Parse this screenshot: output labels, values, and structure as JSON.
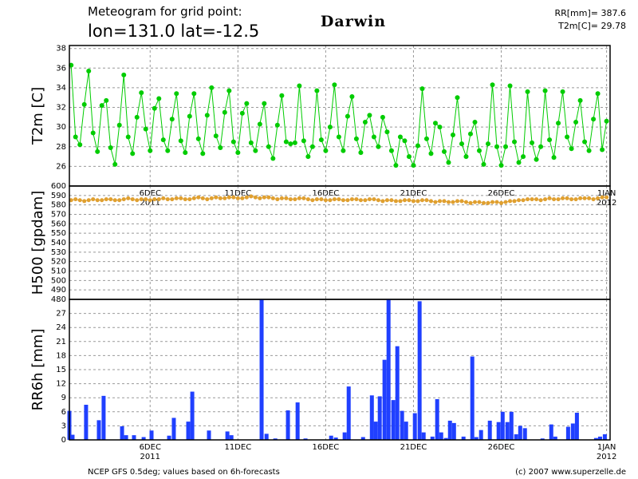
{
  "header": {
    "title": "Meteogram for grid point:",
    "location": "lon=131.0 lat=-12.5",
    "place": "Darwin",
    "rr_total": "RR[mm]= 387.6",
    "t2m_mean": "T2m[C]= 29.78"
  },
  "footer": {
    "source": "NCEP GFS 0.5deg; values based on 6h-forecasts",
    "copyright": "(c) 2007 www.superzelle.de"
  },
  "chart_data": [
    {
      "type": "line",
      "ylabel": "T2m [C]",
      "color": "#00cc00",
      "markers": true,
      "grid": true,
      "xlim": [
        1.4,
        32.2
      ],
      "ylim": [
        24,
        38.3
      ],
      "yticks": [
        26,
        28,
        30,
        32,
        34,
        36,
        38
      ],
      "xticks": [
        {
          "value": 6,
          "label": "6DEC",
          "year": "2011"
        },
        {
          "value": 11,
          "label": "11DEC"
        },
        {
          "value": 16,
          "label": "16DEC"
        },
        {
          "value": 21,
          "label": "21DEC"
        },
        {
          "value": 26,
          "label": "26DEC"
        },
        {
          "value": 32,
          "label": "1JAN",
          "year": "2012"
        }
      ],
      "x": [
        1.5,
        1.75,
        2,
        2.25,
        2.5,
        2.75,
        3,
        3.25,
        3.5,
        3.75,
        4,
        4.25,
        4.5,
        4.75,
        5,
        5.25,
        5.5,
        5.75,
        6,
        6.25,
        6.5,
        6.75,
        7,
        7.25,
        7.5,
        7.75,
        8,
        8.25,
        8.5,
        8.75,
        9,
        9.25,
        9.5,
        9.75,
        10,
        10.25,
        10.5,
        10.75,
        11,
        11.25,
        11.5,
        11.75,
        12,
        12.25,
        12.5,
        12.75,
        13,
        13.25,
        13.5,
        13.75,
        14,
        14.25,
        14.5,
        14.75,
        15,
        15.25,
        15.5,
        15.75,
        16,
        16.25,
        16.5,
        16.75,
        17,
        17.25,
        17.5,
        17.75,
        18,
        18.25,
        18.5,
        18.75,
        19,
        19.25,
        19.5,
        19.75,
        20,
        20.25,
        20.5,
        20.75,
        21,
        21.25,
        21.5,
        21.75,
        22,
        22.25,
        22.5,
        22.75,
        23,
        23.25,
        23.5,
        23.75,
        24,
        24.25,
        24.5,
        24.75,
        25,
        25.25,
        25.5,
        25.75,
        26,
        26.25,
        26.5,
        26.75,
        27,
        27.25,
        27.5,
        27.75,
        28,
        28.25,
        28.5,
        28.75,
        29,
        29.25,
        29.5,
        29.75,
        30,
        30.25,
        30.5,
        30.75,
        31,
        31.25,
        31.5,
        31.75,
        32
      ],
      "values": [
        36.3,
        29.0,
        28.2,
        32.3,
        35.7,
        29.4,
        27.5,
        32.2,
        32.7,
        27.9,
        26.2,
        30.2,
        35.3,
        29.0,
        27.3,
        31.0,
        33.5,
        29.8,
        27.6,
        31.9,
        32.9,
        28.7,
        27.6,
        30.8,
        33.4,
        28.6,
        27.4,
        31.1,
        33.4,
        28.8,
        27.3,
        31.2,
        34.0,
        29.1,
        27.9,
        31.5,
        33.7,
        28.5,
        27.4,
        31.4,
        32.4,
        28.4,
        27.6,
        30.3,
        32.4,
        28.0,
        26.8,
        30.2,
        33.2,
        28.5,
        28.3,
        28.4,
        34.2,
        28.6,
        27.0,
        28.0,
        33.7,
        28.7,
        27.6,
        30.0,
        34.3,
        29.0,
        27.6,
        31.1,
        33.1,
        28.8,
        27.4,
        30.5,
        31.2,
        29.0,
        28.0,
        31.0,
        29.5,
        27.6,
        26.1,
        29.0,
        28.6,
        27.0,
        26.1,
        28.1,
        33.9,
        28.8,
        27.3,
        30.4,
        30.0,
        27.5,
        26.4,
        29.2,
        33.0,
        28.3,
        27.0,
        29.3,
        30.5,
        27.6,
        26.2,
        28.3,
        34.3,
        28.0,
        26.1,
        28.0,
        34.2,
        28.5,
        26.4,
        27.0,
        33.6,
        28.4,
        26.7,
        28.0,
        33.7,
        28.7,
        26.9,
        30.4,
        33.6,
        29.0,
        27.8,
        30.5,
        32.7,
        28.5,
        27.6,
        30.8,
        33.4,
        27.7,
        30.6
      ]
    },
    {
      "type": "line",
      "ylabel": "H500 [gpdam]",
      "color": "#e0a030",
      "markers": true,
      "grid": true,
      "xlim": [
        1.4,
        32.2
      ],
      "ylim": [
        480,
        600
      ],
      "yticks": [
        480,
        490,
        500,
        510,
        520,
        530,
        540,
        550,
        560,
        570,
        580,
        590,
        600
      ],
      "xticks": [
        6,
        11,
        16,
        21,
        26,
        32
      ],
      "x": [
        1.5,
        1.75,
        2,
        2.25,
        2.5,
        2.75,
        3,
        3.25,
        3.5,
        3.75,
        4,
        4.25,
        4.5,
        4.75,
        5,
        5.25,
        5.5,
        5.75,
        6,
        6.25,
        6.5,
        6.75,
        7,
        7.25,
        7.5,
        7.75,
        8,
        8.25,
        8.5,
        8.75,
        9,
        9.25,
        9.5,
        9.75,
        10,
        10.25,
        10.5,
        10.75,
        11,
        11.25,
        11.5,
        11.75,
        12,
        12.25,
        12.5,
        12.75,
        13,
        13.25,
        13.5,
        13.75,
        14,
        14.25,
        14.5,
        14.75,
        15,
        15.25,
        15.5,
        15.75,
        16,
        16.25,
        16.5,
        16.75,
        17,
        17.25,
        17.5,
        17.75,
        18,
        18.25,
        18.5,
        18.75,
        19,
        19.25,
        19.5,
        19.75,
        20,
        20.25,
        20.5,
        20.75,
        21,
        21.25,
        21.5,
        21.75,
        22,
        22.25,
        22.5,
        22.75,
        23,
        23.25,
        23.5,
        23.75,
        24,
        24.25,
        24.5,
        24.75,
        25,
        25.25,
        25.5,
        25.75,
        26,
        26.25,
        26.5,
        26.75,
        27,
        27.25,
        27.5,
        27.75,
        28,
        28.25,
        28.5,
        28.75,
        29,
        29.25,
        29.5,
        29.75,
        30,
        30.25,
        30.5,
        30.75,
        31,
        31.25,
        31.5,
        31.75,
        32
      ],
      "values": [
        585,
        586,
        585,
        584,
        585,
        586,
        585,
        585,
        586,
        586,
        585,
        585,
        586,
        587,
        586,
        585,
        586,
        586,
        585,
        586,
        586,
        587,
        586,
        586,
        587,
        587,
        586,
        586,
        587,
        588,
        587,
        586,
        587,
        588,
        587,
        587,
        588,
        588,
        587,
        587,
        588,
        589,
        588,
        587,
        588,
        588,
        587,
        586,
        587,
        587,
        586,
        586,
        587,
        587,
        586,
        585,
        586,
        586,
        585,
        585,
        586,
        586,
        585,
        585,
        586,
        586,
        585,
        585,
        586,
        586,
        585,
        584,
        585,
        585,
        584,
        584,
        585,
        585,
        584,
        584,
        585,
        585,
        584,
        583,
        584,
        584,
        583,
        583,
        584,
        584,
        583,
        582,
        583,
        583,
        582,
        582,
        583,
        583,
        582,
        583,
        584,
        584,
        585,
        585,
        586,
        586,
        586,
        585,
        586,
        587,
        586,
        586,
        587,
        587,
        586,
        586,
        587,
        587,
        587,
        586,
        587,
        588,
        588
      ]
    },
    {
      "type": "bar",
      "ylabel": "RR6h [mm]",
      "color": "#2040ff",
      "grid": true,
      "xlim": [
        1.4,
        32.2
      ],
      "ylim": [
        0,
        30
      ],
      "yticks": [
        0,
        3,
        6,
        9,
        12,
        15,
        18,
        21,
        24,
        27
      ],
      "xticks": [
        {
          "value": 6,
          "label": "6DEC",
          "year": "2011"
        },
        {
          "value": 11,
          "label": "11DEC"
        },
        {
          "value": 16,
          "label": "16DEC"
        },
        {
          "value": 21,
          "label": "21DEC"
        },
        {
          "value": 26,
          "label": "26DEC"
        },
        {
          "value": 32,
          "label": "1JAN",
          "year": "2012"
        }
      ],
      "x": [
        1.4,
        1.58,
        2.35,
        3.08,
        3.35,
        4.4,
        4.63,
        5.08,
        5.63,
        6.08,
        7.08,
        7.35,
        8.17,
        8.4,
        9.35,
        10.4,
        10.63,
        12.35,
        12.63,
        13.13,
        13.85,
        14.4,
        14.85,
        16.31,
        16.58,
        17.08,
        17.31,
        18.13,
        18.63,
        18.85,
        19.08,
        19.35,
        19.58,
        19.85,
        20.08,
        20.35,
        20.58,
        21.08,
        21.35,
        21.58,
        22.08,
        22.35,
        22.58,
        22.85,
        23.08,
        23.31,
        23.85,
        24.35,
        24.58,
        24.85,
        25.35,
        25.85,
        26.08,
        26.35,
        26.58,
        26.85,
        27.08,
        27.35,
        28.35,
        28.85,
        29.08,
        29.81,
        30.08,
        30.31,
        31.4,
        31.63,
        31.9
      ],
      "values": [
        6.2,
        1.1,
        7.5,
        4.2,
        9.4,
        2.9,
        1.0,
        1.0,
        0.6,
        2.0,
        0.9,
        4.7,
        3.9,
        10.3,
        2.0,
        1.8,
        1.0,
        30,
        1.3,
        0.3,
        6.3,
        8.0,
        0.3,
        0.9,
        0.5,
        1.6,
        11.4,
        0.6,
        9.5,
        3.9,
        9.3,
        17.1,
        30,
        8.5,
        20.0,
        6.2,
        3.9,
        5.7,
        29.6,
        1.6,
        0.7,
        8.7,
        1.6,
        0.4,
        4.1,
        3.6,
        0.7,
        17.8,
        0.6,
        2.1,
        4.1,
        3.8,
        6.0,
        3.8,
        6.0,
        1.2,
        3.0,
        2.5,
        0.3,
        3.3,
        0.7,
        2.8,
        3.5,
        5.8,
        0.4,
        0.7,
        1.2
      ]
    }
  ]
}
